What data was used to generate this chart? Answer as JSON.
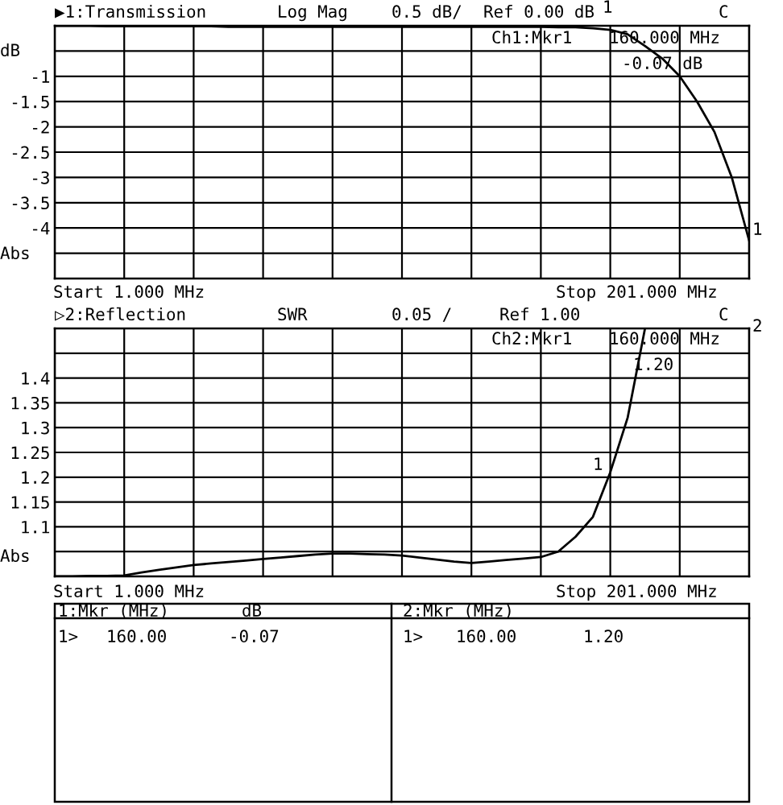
{
  "chart_data": [
    {
      "type": "line",
      "title": "▶1:Transmission",
      "ylabel": "dB",
      "categories": [
        null,
        null,
        null,
        null,
        null,
        null,
        null,
        null,
        null,
        null,
        null,
        null,
        null,
        null,
        null,
        null,
        null,
        null,
        null,
        null,
        null,
        null,
        null,
        null,
        null,
        null,
        null,
        null,
        null,
        null,
        null,
        null,
        null,
        null,
        null,
        null,
        null,
        null,
        null,
        null,
        null
      ],
      "series": [
        {
          "color": "#000000",
          "values": [
            0,
            0,
            0,
            -0.01,
            -0.01,
            -0.01,
            -0.01,
            -0.01,
            -0.01,
            -0.01,
            -0.02,
            -0.02,
            -0.02,
            -0.02,
            -0.02,
            -0.02,
            -0.02,
            -0.02,
            -0.02,
            -0.02,
            -0.02,
            -0.02,
            -0.02,
            -0.02,
            -0.02,
            -0.02,
            -0.02,
            -0.02,
            -0.02,
            -0.03,
            -0.03,
            -0.05,
            -0.08,
            -0.17,
            -0.4,
            -0.65,
            -1.0,
            -1.5,
            -2.1,
            -3.0,
            -4.25
          ]
        }
      ],
      "ylim": [
        -5,
        0
      ],
      "yticks": [
        {
          "value": 0,
          "label": null
        },
        {
          "value": -0.5,
          "label": null
        },
        -1,
        -1.5,
        -2,
        -2.5,
        -3,
        -3.5,
        -4,
        {
          "value": -4.5,
          "label": null
        },
        {
          "value": -5,
          "label": null
        }
      ],
      "grid": true,
      "marker": "none",
      "line_style": "solid",
      "annotations": [
        "Log Mag",
        "0.5 dB/",
        "Ref 0.00 dB",
        "C",
        "Ch1:Mkr1",
        "160.000 MHz",
        "-0.07 dB",
        "Abs",
        "Start 1.000 MHz",
        "Stop 201.000 MHz",
        "1",
        "1"
      ]
    },
    {
      "type": "line",
      "title": "▷2:Reflection",
      "categories": [
        null,
        null,
        null,
        null,
        null,
        null,
        null,
        null,
        null,
        null,
        null,
        null,
        null,
        null,
        null,
        null,
        null,
        null,
        null,
        null,
        null,
        null,
        null,
        null,
        null,
        null,
        null,
        null,
        null,
        null,
        null,
        null,
        null,
        null,
        null,
        null,
        null,
        null,
        null,
        null,
        null
      ],
      "series": [
        {
          "color": "#000000",
          "values": [
            1.0,
            1.0,
            1.001,
            1.001,
            1.002,
            1.008,
            1.013,
            1.018,
            1.023,
            1.026,
            1.029,
            1.032,
            1.035,
            1.038,
            1.041,
            1.044,
            1.046,
            1.046,
            1.045,
            1.044,
            1.042,
            1.038,
            1.034,
            1.03,
            1.027,
            1.03,
            1.033,
            1.036,
            1.039,
            1.05,
            1.08,
            1.12,
            1.21,
            1.32,
            1.5,
            null,
            null,
            null,
            null,
            null,
            null
          ]
        }
      ],
      "ylim": [
        1.0,
        1.5
      ],
      "yticks": [
        {
          "value": 1.0,
          "label": null
        },
        {
          "value": 1.05,
          "label": null
        },
        1.1,
        1.15,
        1.2,
        1.25,
        1.3,
        1.35,
        1.4,
        {
          "value": 1.45,
          "label": null
        },
        {
          "value": 1.5,
          "label": null
        }
      ],
      "grid": true,
      "marker": "none",
      "line_style": "solid",
      "annotations": [
        "SWR",
        "0.05 /",
        "Ref 1.00",
        "C",
        "Ch2:Mkr1",
        "160.000 MHz",
        "1.20",
        "Abs",
        "Start 1.000 MHz",
        "Stop 201.000 MHz",
        "2",
        "1"
      ]
    },
    {
      "type": "other",
      "annotations": [
        "1:Mkr (MHz)",
        "dB",
        "1>",
        "160.00",
        "-0.07",
        "2:Mkr (MHz)",
        "1>",
        "160.00",
        "1.20"
      ]
    }
  ]
}
